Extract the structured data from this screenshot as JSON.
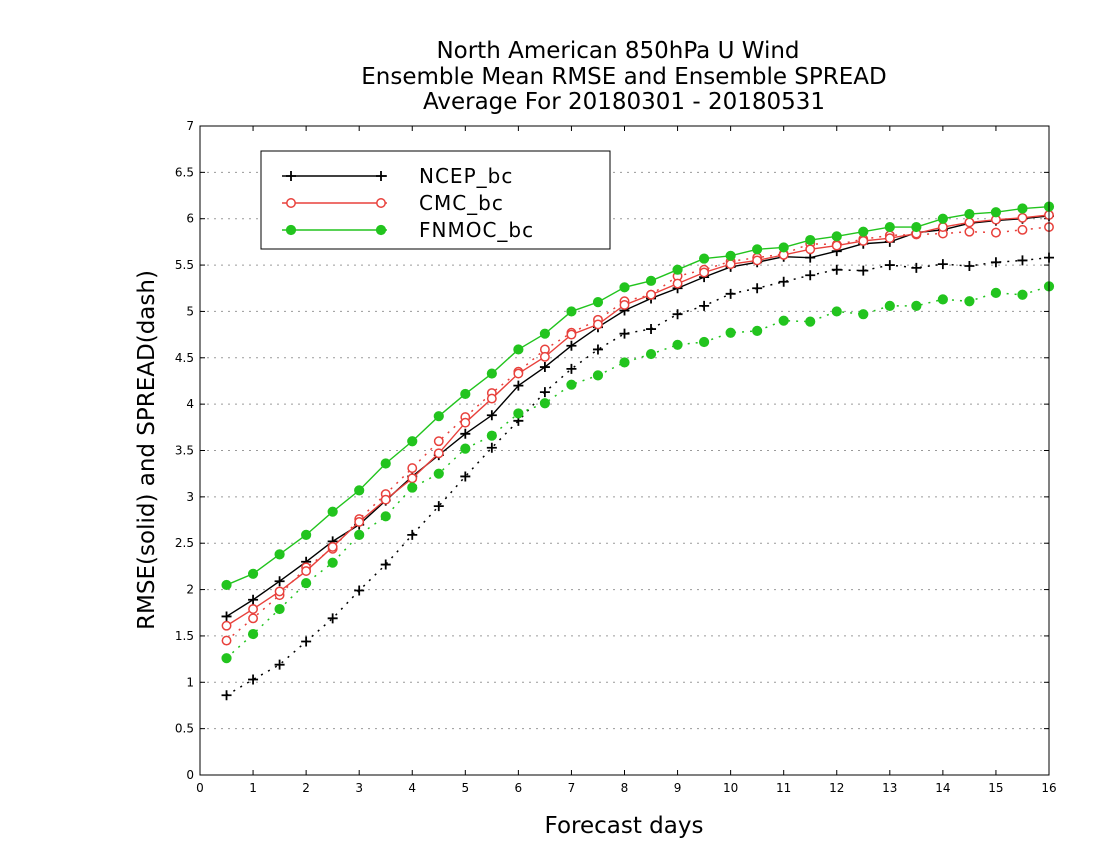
{
  "chart_data": {
    "type": "line",
    "title_lines": [
      "North American 850hPa U Wind",
      "Ensemble Mean RMSE and Ensemble SPREAD",
      "Average For 20180301 - 20180531"
    ],
    "xlabel": "Forecast days",
    "ylabel": "RMSE(solid) and SPREAD(dash)",
    "xlim": [
      0,
      16
    ],
    "ylim": [
      0,
      7
    ],
    "x_ticks": [
      "0",
      "1",
      "2",
      "3",
      "4",
      "5",
      "6",
      "7",
      "8",
      "9",
      "10",
      "11",
      "12",
      "13",
      "14",
      "15",
      "16"
    ],
    "y_ticks": [
      "0",
      "0.5",
      "1",
      "1.5",
      "2",
      "2.5",
      "3",
      "3.5",
      "4",
      "4.5",
      "5",
      "5.5",
      "6",
      "6.5",
      "7"
    ],
    "grid": "horizontal dotted",
    "legend_position": "top-left",
    "x": [
      0.5,
      1,
      1.5,
      2,
      2.5,
      3,
      3.5,
      4,
      4.5,
      5,
      5.5,
      6,
      6.5,
      7,
      7.5,
      8,
      8.5,
      9,
      9.5,
      10,
      10.5,
      11,
      11.5,
      12,
      12.5,
      13,
      13.5,
      14,
      14.5,
      15,
      15.5,
      16
    ],
    "series": [
      {
        "name": "NCEP_bc",
        "color": "#000000",
        "marker": "plus",
        "rmse": [
          1.71,
          1.89,
          2.09,
          2.3,
          2.52,
          2.7,
          2.96,
          3.22,
          3.45,
          3.68,
          3.88,
          4.2,
          4.4,
          4.63,
          4.83,
          5.01,
          5.14,
          5.25,
          5.37,
          5.48,
          5.53,
          5.59,
          5.58,
          5.65,
          5.73,
          5.75,
          5.85,
          5.88,
          5.95,
          5.98,
          6.0,
          6.03
        ],
        "spread": [
          0.86,
          1.03,
          1.19,
          1.44,
          1.69,
          1.99,
          2.27,
          2.59,
          2.9,
          3.22,
          3.53,
          3.82,
          4.13,
          4.38,
          4.59,
          4.76,
          4.81,
          4.97,
          5.06,
          5.19,
          5.25,
          5.32,
          5.39,
          5.45,
          5.44,
          5.5,
          5.47,
          5.51,
          5.49,
          5.53,
          5.55,
          5.58
        ]
      },
      {
        "name": "CMC_bc",
        "color": "#e8413c",
        "marker": "circle-open",
        "rmse": [
          1.61,
          1.79,
          1.98,
          2.2,
          2.46,
          2.73,
          2.97,
          3.2,
          3.47,
          3.8,
          4.06,
          4.33,
          4.51,
          4.75,
          4.86,
          5.07,
          5.18,
          5.3,
          5.42,
          5.51,
          5.55,
          5.61,
          5.67,
          5.71,
          5.76,
          5.79,
          5.84,
          5.91,
          5.96,
          5.99,
          6.01,
          6.04
        ],
        "spread": [
          1.45,
          1.69,
          1.94,
          2.24,
          2.44,
          2.76,
          3.03,
          3.31,
          3.6,
          3.86,
          4.12,
          4.35,
          4.59,
          4.77,
          4.91,
          5.11,
          5.18,
          5.38,
          5.45,
          5.54,
          5.58,
          5.62,
          5.73,
          5.72,
          5.78,
          5.82,
          5.83,
          5.84,
          5.86,
          5.85,
          5.88,
          5.91
        ]
      },
      {
        "name": "FNMOC_bc",
        "color": "#22c41e",
        "marker": "circle-filled",
        "rmse": [
          2.05,
          2.17,
          2.38,
          2.59,
          2.84,
          3.07,
          3.36,
          3.6,
          3.87,
          4.11,
          4.33,
          4.59,
          4.76,
          5.0,
          5.1,
          5.26,
          5.33,
          5.45,
          5.57,
          5.6,
          5.67,
          5.69,
          5.77,
          5.81,
          5.86,
          5.91,
          5.91,
          6.0,
          6.05,
          6.07,
          6.11,
          6.13
        ],
        "spread": [
          1.26,
          1.52,
          1.79,
          2.07,
          2.29,
          2.59,
          2.79,
          3.1,
          3.25,
          3.52,
          3.66,
          3.9,
          4.01,
          4.21,
          4.31,
          4.45,
          4.54,
          4.64,
          4.67,
          4.77,
          4.79,
          4.9,
          4.89,
          5.0,
          4.97,
          5.06,
          5.06,
          5.13,
          5.11,
          5.2,
          5.18,
          5.27
        ]
      }
    ]
  }
}
